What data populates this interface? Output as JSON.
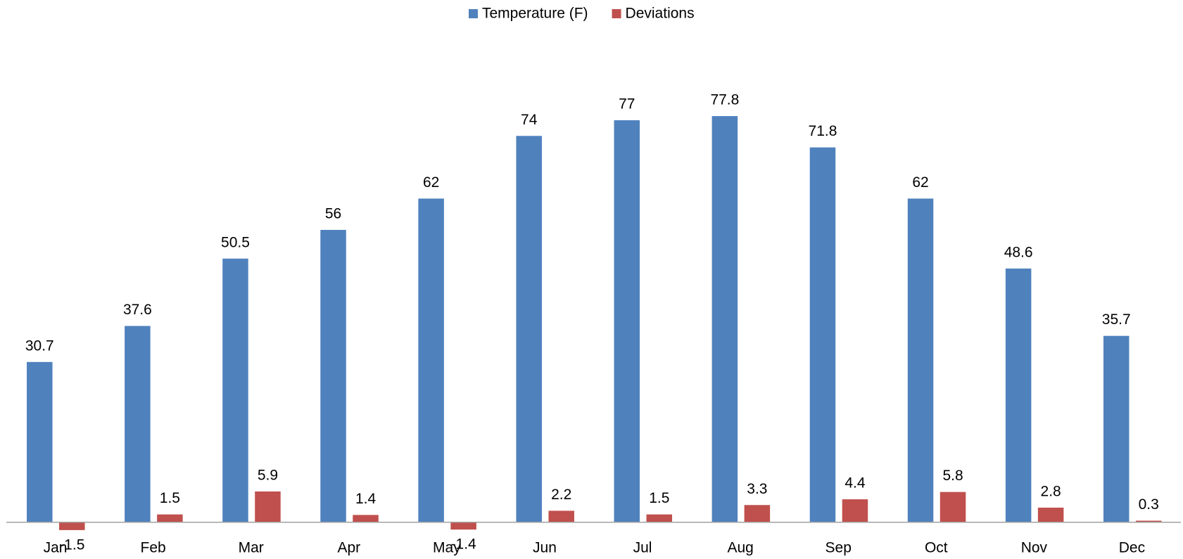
{
  "chart_data": {
    "type": "bar",
    "categories": [
      "Jan",
      "Feb",
      "Mar",
      "Apr",
      "May",
      "Jun",
      "Jul",
      "Aug",
      "Sep",
      "Oct",
      "Nov",
      "Dec"
    ],
    "series": [
      {
        "name": "Temperature (F)",
        "color": "#4f81bd",
        "values": [
          30.7,
          37.6,
          50.5,
          56,
          62,
          74,
          77,
          77.8,
          71.8,
          62,
          48.6,
          35.7
        ]
      },
      {
        "name": "Deviations",
        "color": "#c0504d",
        "values": [
          -1.5,
          1.5,
          5.9,
          1.4,
          -1.4,
          2.2,
          1.5,
          3.3,
          4.4,
          5.8,
          2.8,
          0.3
        ]
      }
    ],
    "ylim": [
      -10,
      90
    ],
    "legend": "top"
  }
}
